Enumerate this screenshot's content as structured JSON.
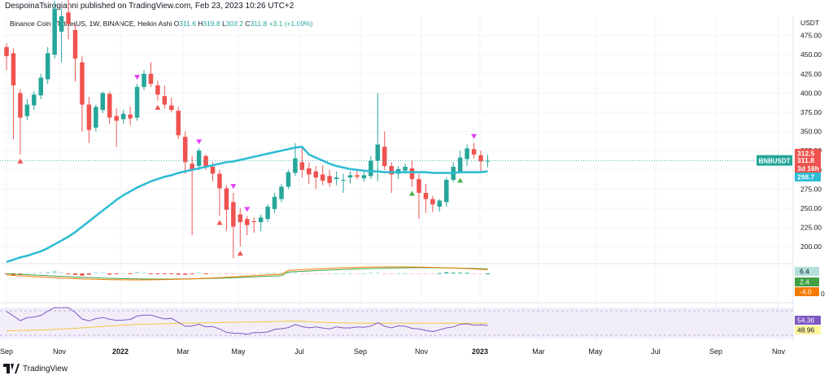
{
  "header": {
    "text": "DespoinaTsirogianni published on TradingView.com, Feb 23, 2023 10:26 UTC+2"
  },
  "legend": {
    "symbol": "Binance Coin / TetherUS, 1W, BINANCE, Heikin Ashi",
    "o_label": "O",
    "o": "311.6",
    "h_label": "H",
    "h": "319.8",
    "l_label": "L",
    "l": "303.2",
    "c_label": "C",
    "c": "311.8",
    "change": "+3.1 (+1.00%)"
  },
  "footer": {
    "brand": "TradingView"
  },
  "colors": {
    "up": "#26a69a",
    "down": "#ef5350",
    "ma": "#2bbbd3",
    "rsi": "#7e57c2",
    "rsi_ma": "#f5c842",
    "macd": "#f57c00",
    "signal": "#43a047",
    "grid": "#f0f3fa"
  },
  "chart_data": [
    {
      "type": "candlestick",
      "title": "Binance Coin / TetherUS, 1W, BINANCE, Heikin Ashi",
      "currency": "USDT",
      "ylim": [
        180,
        500
      ],
      "y_ticks": [
        475,
        450,
        425,
        400,
        375,
        350,
        325,
        300,
        275,
        250,
        225,
        200
      ],
      "y_tick_labels": [
        "475.00",
        "450.00",
        "425.00",
        "400.00",
        "375.00",
        "350.00",
        "325.00",
        "300.00",
        "275.00",
        "250.00",
        "225.00",
        "200.00"
      ],
      "x_tick_labels": [
        "Sep",
        "Nov",
        "2022",
        "Mar",
        "May",
        "Jul",
        "Sep",
        "Nov",
        "2023",
        "Mar",
        "May",
        "Jul",
        "Sep",
        "Nov"
      ],
      "candles": [
        {
          "o": 460,
          "h": 465,
          "l": 430,
          "c": 448
        },
        {
          "o": 452,
          "h": 458,
          "l": 340,
          "c": 410
        },
        {
          "o": 400,
          "h": 405,
          "l": 320,
          "c": 368
        },
        {
          "o": 370,
          "h": 392,
          "l": 365,
          "c": 385
        },
        {
          "o": 384,
          "h": 402,
          "l": 378,
          "c": 398
        },
        {
          "o": 397,
          "h": 425,
          "l": 392,
          "c": 420
        },
        {
          "o": 418,
          "h": 460,
          "l": 412,
          "c": 452
        },
        {
          "o": 450,
          "h": 520,
          "l": 445,
          "c": 510
        },
        {
          "o": 480,
          "h": 510,
          "l": 440,
          "c": 500
        },
        {
          "o": 505,
          "h": 540,
          "l": 470,
          "c": 490
        },
        {
          "o": 482,
          "h": 490,
          "l": 415,
          "c": 445
        },
        {
          "o": 440,
          "h": 448,
          "l": 350,
          "c": 385
        },
        {
          "o": 385,
          "h": 395,
          "l": 335,
          "c": 352
        },
        {
          "o": 355,
          "h": 385,
          "l": 350,
          "c": 382
        },
        {
          "o": 378,
          "h": 402,
          "l": 374,
          "c": 400
        },
        {
          "o": 399,
          "h": 402,
          "l": 360,
          "c": 368
        },
        {
          "o": 370,
          "h": 380,
          "l": 330,
          "c": 364
        },
        {
          "o": 366,
          "h": 378,
          "l": 360,
          "c": 373
        },
        {
          "o": 372,
          "h": 382,
          "l": 358,
          "c": 367
        },
        {
          "o": 368,
          "h": 412,
          "l": 364,
          "c": 408
        },
        {
          "o": 408,
          "h": 430,
          "l": 404,
          "c": 425
        },
        {
          "o": 425,
          "h": 440,
          "l": 408,
          "c": 412
        },
        {
          "o": 410,
          "h": 416,
          "l": 390,
          "c": 398
        },
        {
          "o": 396,
          "h": 410,
          "l": 380,
          "c": 385
        },
        {
          "o": 384,
          "h": 394,
          "l": 375,
          "c": 378
        },
        {
          "o": 377,
          "h": 382,
          "l": 340,
          "c": 345
        },
        {
          "o": 343,
          "h": 350,
          "l": 295,
          "c": 310
        },
        {
          "o": 308,
          "h": 318,
          "l": 215,
          "c": 300
        },
        {
          "o": 305,
          "h": 328,
          "l": 300,
          "c": 325
        },
        {
          "o": 318,
          "h": 320,
          "l": 300,
          "c": 304
        },
        {
          "o": 304,
          "h": 310,
          "l": 285,
          "c": 295
        },
        {
          "o": 295,
          "h": 300,
          "l": 240,
          "c": 276
        },
        {
          "o": 276,
          "h": 280,
          "l": 220,
          "c": 248
        },
        {
          "o": 258,
          "h": 270,
          "l": 185,
          "c": 226
        },
        {
          "o": 242,
          "h": 250,
          "l": 200,
          "c": 232
        },
        {
          "o": 236,
          "h": 240,
          "l": 215,
          "c": 228
        },
        {
          "o": 233,
          "h": 238,
          "l": 218,
          "c": 232
        },
        {
          "o": 232,
          "h": 242,
          "l": 220,
          "c": 238
        },
        {
          "o": 236,
          "h": 255,
          "l": 232,
          "c": 252
        },
        {
          "o": 249,
          "h": 270,
          "l": 244,
          "c": 265
        },
        {
          "o": 262,
          "h": 282,
          "l": 258,
          "c": 278
        },
        {
          "o": 278,
          "h": 300,
          "l": 275,
          "c": 297
        },
        {
          "o": 296,
          "h": 335,
          "l": 292,
          "c": 315
        },
        {
          "o": 310,
          "h": 330,
          "l": 290,
          "c": 300
        },
        {
          "o": 302,
          "h": 310,
          "l": 282,
          "c": 294
        },
        {
          "o": 298,
          "h": 305,
          "l": 275,
          "c": 290
        },
        {
          "o": 294,
          "h": 306,
          "l": 280,
          "c": 286
        },
        {
          "o": 292,
          "h": 300,
          "l": 278,
          "c": 283
        },
        {
          "o": 288,
          "h": 298,
          "l": 280,
          "c": 290
        },
        {
          "o": 286,
          "h": 295,
          "l": 270,
          "c": 287
        },
        {
          "o": 290,
          "h": 298,
          "l": 282,
          "c": 293
        },
        {
          "o": 293,
          "h": 300,
          "l": 288,
          "c": 291
        },
        {
          "o": 289,
          "h": 298,
          "l": 285,
          "c": 293
        },
        {
          "o": 292,
          "h": 318,
          "l": 288,
          "c": 312
        },
        {
          "o": 312,
          "h": 400,
          "l": 285,
          "c": 333
        },
        {
          "o": 330,
          "h": 350,
          "l": 300,
          "c": 305
        },
        {
          "o": 305,
          "h": 310,
          "l": 270,
          "c": 294
        },
        {
          "o": 295,
          "h": 305,
          "l": 288,
          "c": 301
        },
        {
          "o": 299,
          "h": 308,
          "l": 295,
          "c": 304
        },
        {
          "o": 302,
          "h": 312,
          "l": 278,
          "c": 288
        },
        {
          "o": 288,
          "h": 295,
          "l": 236,
          "c": 270
        },
        {
          "o": 270,
          "h": 282,
          "l": 244,
          "c": 262
        },
        {
          "o": 262,
          "h": 266,
          "l": 245,
          "c": 255
        },
        {
          "o": 252,
          "h": 262,
          "l": 246,
          "c": 260
        },
        {
          "o": 258,
          "h": 290,
          "l": 252,
          "c": 287
        },
        {
          "o": 287,
          "h": 310,
          "l": 284,
          "c": 304
        },
        {
          "o": 298,
          "h": 325,
          "l": 295,
          "c": 316
        },
        {
          "o": 314,
          "h": 333,
          "l": 305,
          "c": 328
        },
        {
          "o": 327,
          "h": 335,
          "l": 315,
          "c": 320
        },
        {
          "o": 319,
          "h": 325,
          "l": 298,
          "c": 311
        },
        {
          "o": 311.6,
          "h": 319.8,
          "l": 303.2,
          "c": 311.8
        }
      ],
      "moving_average": [
        180,
        183,
        186,
        188,
        191,
        194,
        198,
        203,
        208,
        213,
        219,
        226,
        233,
        240,
        247,
        254,
        261,
        267,
        272,
        277,
        281,
        285,
        288,
        291,
        293,
        296,
        298,
        300,
        302,
        304,
        306,
        308,
        310,
        311,
        313,
        315,
        317,
        319,
        321,
        323,
        325,
        327,
        329,
        330,
        320,
        316,
        312,
        308,
        305,
        303,
        301,
        300,
        299,
        298,
        298,
        297,
        297,
        297,
        297,
        297,
        297,
        297,
        296,
        296,
        296,
        296,
        297,
        297,
        297,
        297,
        298
      ],
      "signals": [
        {
          "index": 2,
          "dir": "up"
        },
        {
          "index": 19,
          "dir": "down"
        },
        {
          "index": 22,
          "dir": "up"
        },
        {
          "index": 28,
          "dir": "down"
        },
        {
          "index": 31,
          "dir": "up"
        },
        {
          "index": 33,
          "dir": "down"
        },
        {
          "index": 34,
          "dir": "up"
        },
        {
          "index": 35,
          "dir": "down"
        },
        {
          "index": 59,
          "dir": "up"
        },
        {
          "index": 66,
          "dir": "up"
        },
        {
          "index": 68,
          "dir": "down"
        }
      ],
      "price_tags": [
        {
          "label": "312.5",
          "color": "#ef5350"
        },
        {
          "label": "311.8",
          "color": "#ef5350"
        },
        {
          "label": "3d 16h",
          "color": "#ef5350"
        },
        {
          "label": "298.7",
          "color": "#2bbbd3"
        }
      ],
      "symbol_tag": "BNBUSDT"
    },
    {
      "type": "macd",
      "values_shown": {
        "histogram": "6.4",
        "macd": "2.4",
        "signal": "-4.0"
      },
      "axis_tail": "0"
    },
    {
      "type": "rsi",
      "values_shown": {
        "rsi": "54.36",
        "rsi_ma": "48.96"
      }
    }
  ]
}
